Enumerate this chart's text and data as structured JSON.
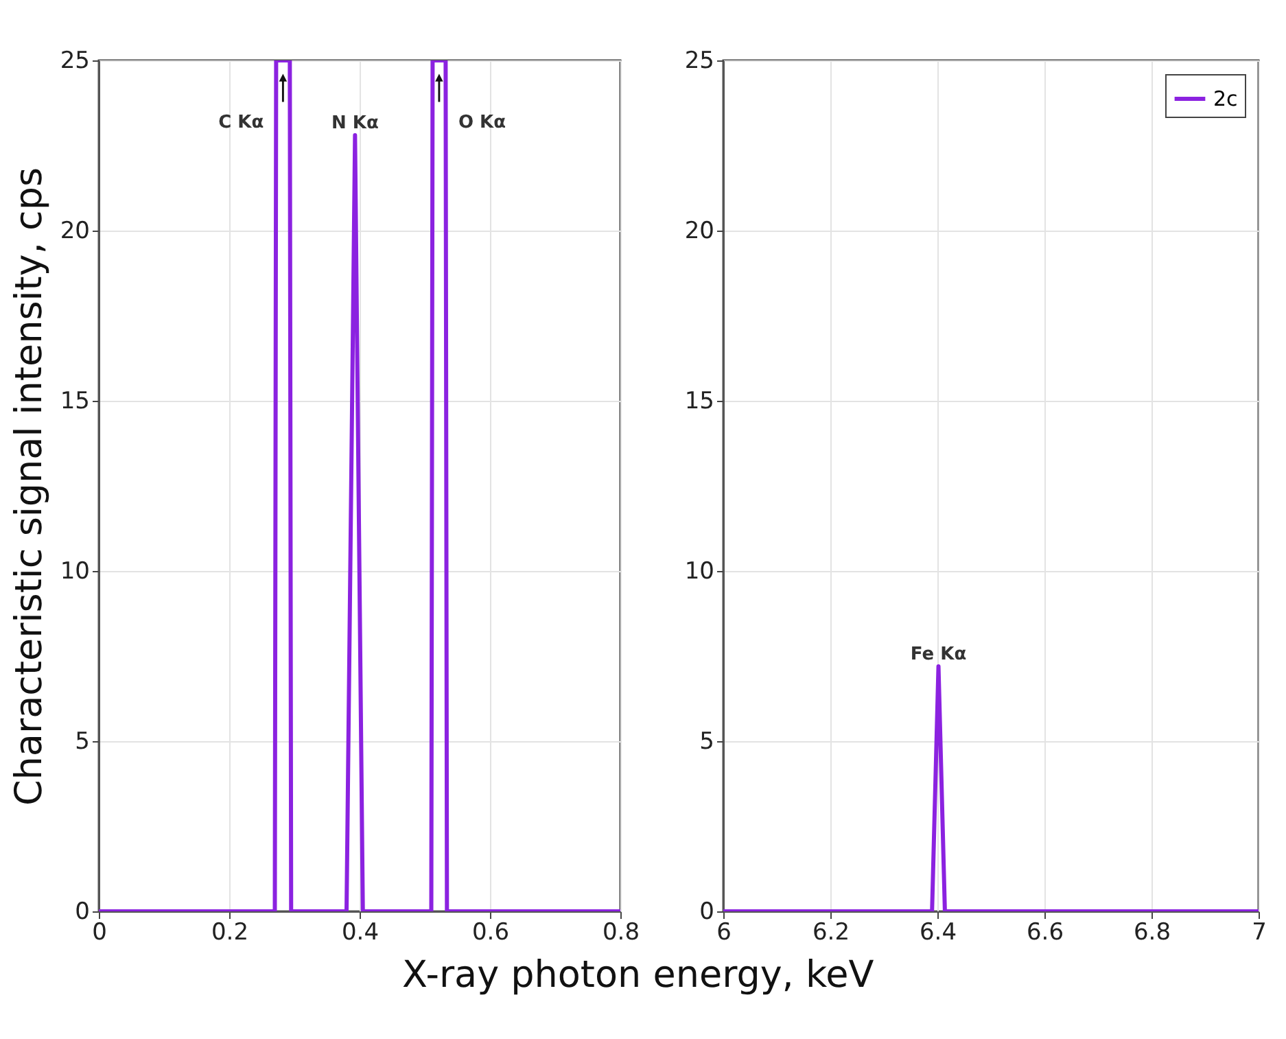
{
  "chart_data": [
    {
      "type": "line",
      "ylabel": "Characteristic signal intensity, cps",
      "xlabel": "X-ray photon energy, keV",
      "x": [
        0,
        0.27,
        0.272,
        0.293,
        0.295,
        0.38,
        0.393,
        0.405,
        0.51,
        0.512,
        0.532,
        0.534,
        0.8
      ],
      "series": [
        {
          "color": "#8b22e0",
          "values": [
            0,
            0,
            25,
            25,
            0,
            0,
            22.8,
            0,
            0,
            25,
            25,
            0,
            0
          ]
        }
      ],
      "annotations": [
        "C Kα",
        "N Kα",
        "O Kα"
      ],
      "xlim": [
        0,
        0.8
      ],
      "xticks": [
        0,
        0.2,
        0.4,
        0.6,
        0.8
      ],
      "ylim": [
        0,
        25
      ],
      "yticks": [
        0,
        5,
        10,
        15,
        20,
        25
      ],
      "grid": true,
      "marker": "none",
      "line_style": "solid"
    },
    {
      "type": "line",
      "x": [
        6,
        6.39,
        6.402,
        6.414,
        7
      ],
      "series": [
        {
          "name": "2c",
          "color": "#8b22e0",
          "values": [
            0,
            0,
            7.2,
            0,
            0
          ]
        }
      ],
      "annotations": [
        "Fe Kα"
      ],
      "xlim": [
        6,
        7
      ],
      "xticks": [
        6,
        6.2,
        6.4,
        6.6,
        6.8,
        7
      ],
      "ylim": [
        0,
        25
      ],
      "yticks": [
        0,
        5,
        10,
        15,
        20,
        25
      ],
      "grid": true,
      "legend": "top right",
      "marker": "none",
      "line_style": "solid"
    }
  ]
}
